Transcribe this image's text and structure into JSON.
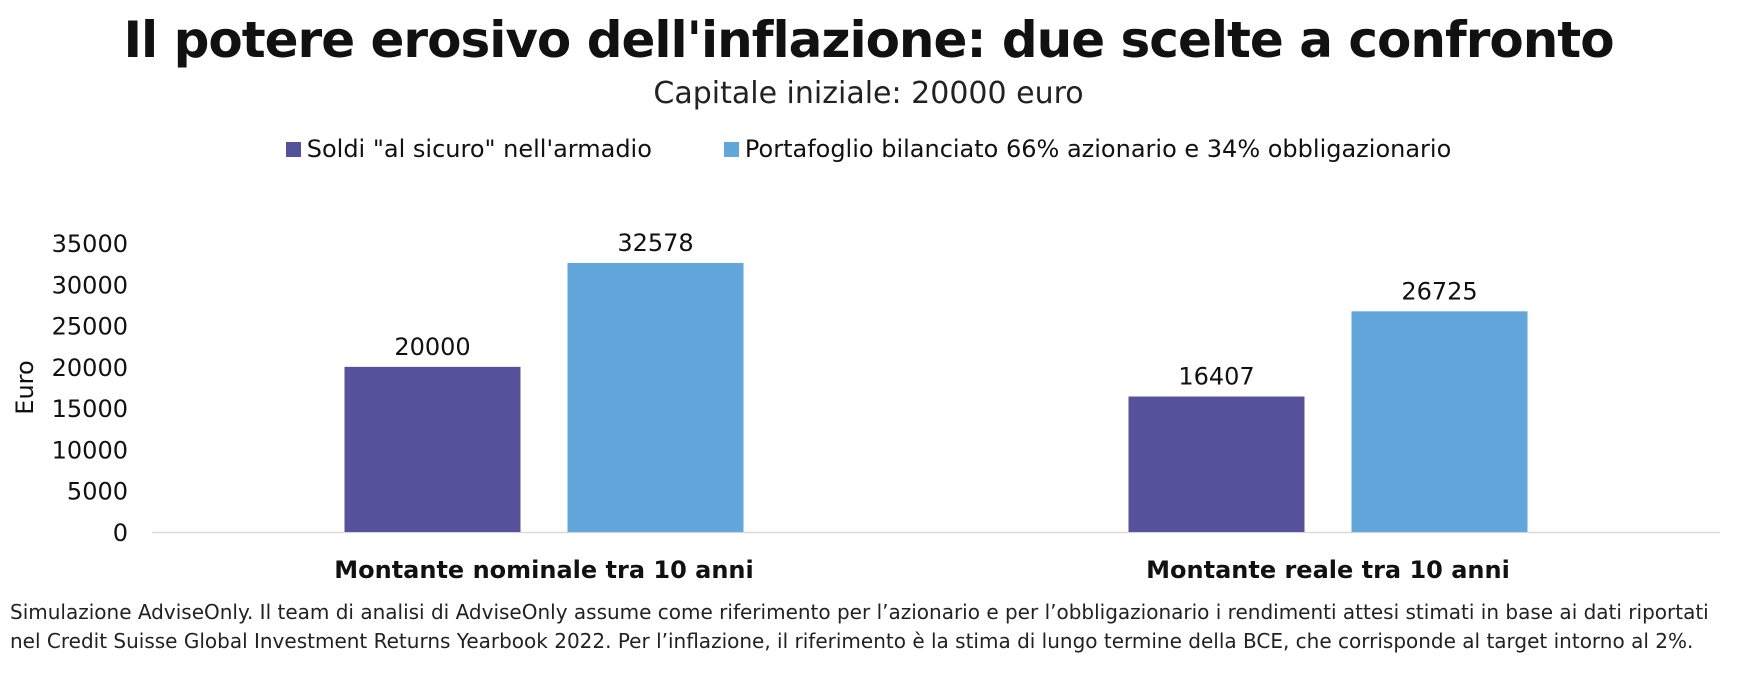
{
  "chart_data": {
    "type": "bar",
    "title": "Il potere erosivo dell'inflazione: due scelte a confronto",
    "subtitle": "Capitale iniziale: 20000 euro",
    "categories": [
      "Montante nominale tra 10 anni",
      "Montante reale tra 10 anni"
    ],
    "series": [
      {
        "name": "Soldi \"al sicuro\" nell'armadio",
        "color": "#55519b",
        "values": [
          20000,
          16407
        ]
      },
      {
        "name": "Portafoglio bilanciato 66% azionario e 34% obbligazionario",
        "color": "#62a7db",
        "values": [
          32578,
          26725
        ]
      }
    ],
    "xlabel": "",
    "ylabel": "Euro",
    "ylim": [
      0,
      35000
    ],
    "yticks": [
      0,
      5000,
      10000,
      15000,
      20000,
      25000,
      30000,
      35000
    ],
    "grid": false,
    "legend_position": "top"
  },
  "footnote": "Simulazione AdviseOnly. Il team di analisi di AdviseOnly assume come riferimento per l’azionario e per l’obbligazionario i rendimenti attesi stimati in base ai dati riportati nel Credit Suisse Global Investment Returns Yearbook 2022. Per l’inflazione, il riferimento è la stima di lungo termine della BCE, che corrisponde al target intorno al 2%."
}
